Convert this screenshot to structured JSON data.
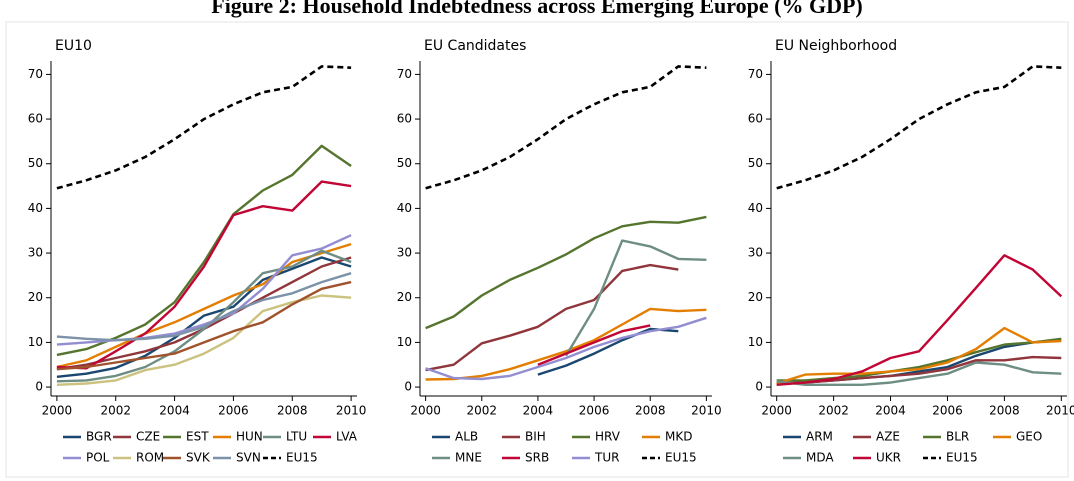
{
  "title": "Figure 2: Household Indebtedness across Emerging Europe (% GDP)",
  "chart_data": [
    {
      "type": "line",
      "title": "EU10",
      "x": [
        2000,
        2001,
        2002,
        2003,
        2004,
        2005,
        2006,
        2007,
        2008,
        2009,
        2010
      ],
      "xlim": [
        1999.8,
        2010.2
      ],
      "xticks": [
        2000,
        2002,
        2004,
        2006,
        2008,
        2010
      ],
      "ylim": [
        -2,
        73
      ],
      "yticks": [
        0,
        10,
        20,
        30,
        40,
        50,
        60,
        70
      ],
      "series": [
        {
          "name": "BGR",
          "color": "#1a476f",
          "values": [
            2.3,
            3,
            4.3,
            7,
            11,
            16,
            18,
            24,
            26.5,
            29,
            27
          ]
        },
        {
          "name": "CZE",
          "color": "#90353b",
          "values": [
            4,
            5,
            6.5,
            8,
            10,
            13,
            16.5,
            20,
            23.5,
            27,
            29
          ]
        },
        {
          "name": "EST",
          "color": "#55752f",
          "values": [
            7.2,
            8.5,
            11,
            14,
            19,
            28,
            38.7,
            44,
            47.5,
            54,
            49.5
          ]
        },
        {
          "name": "HUN",
          "color": "#e37e00",
          "values": [
            4.5,
            6,
            9,
            12,
            14.5,
            17.5,
            20.5,
            23,
            28,
            30,
            32
          ]
        },
        {
          "name": "LTU",
          "color": "#6e8e84",
          "values": [
            1.3,
            1.5,
            2.5,
            4.5,
            8,
            13,
            19,
            25.5,
            27,
            30.5,
            28
          ]
        },
        {
          "name": "LVA",
          "color": "#c10534",
          "values": [
            4.5,
            4.2,
            8,
            12,
            18,
            27,
            38.5,
            40.5,
            39.5,
            46,
            45
          ]
        },
        {
          "name": "POL",
          "color": "#938dd2",
          "values": [
            9.5,
            10,
            10.5,
            11,
            12,
            14,
            16.5,
            22,
            29.5,
            31,
            34
          ]
        },
        {
          "name": "ROM",
          "color": "#cac27e",
          "values": [
            0.5,
            0.8,
            1.5,
            3.8,
            5,
            7.5,
            11,
            17,
            19,
            20.5,
            20
          ]
        },
        {
          "name": "SVK",
          "color": "#a0522d",
          "values": [
            4,
            4.5,
            5.5,
            6.5,
            7.5,
            10,
            12.5,
            14.5,
            18.5,
            22,
            23.5
          ]
        },
        {
          "name": "SVN",
          "color": "#7b92a8",
          "values": [
            11.3,
            10.8,
            10.5,
            10.8,
            11.5,
            13.5,
            17,
            19.5,
            21,
            23.5,
            25.5
          ]
        },
        {
          "name": "EU15",
          "color": "#000000",
          "dashed": true,
          "values": [
            44.5,
            46.3,
            48.5,
            51.5,
            55.5,
            60,
            63.3,
            66,
            67.2,
            71.8,
            71.5
          ]
        }
      ]
    },
    {
      "type": "line",
      "title": "EU Candidates",
      "x": [
        2000,
        2001,
        2002,
        2003,
        2004,
        2005,
        2006,
        2007,
        2008,
        2009,
        2010
      ],
      "xlim": [
        1999.8,
        2010.2
      ],
      "xticks": [
        2000,
        2002,
        2004,
        2006,
        2008,
        2010
      ],
      "ylim": [
        -2,
        73
      ],
      "yticks": [
        0,
        10,
        20,
        30,
        40,
        50,
        60,
        70
      ],
      "series": [
        {
          "name": "ALB",
          "color": "#1a476f",
          "values": [
            null,
            null,
            null,
            null,
            2.8,
            4.8,
            7.5,
            10.5,
            13,
            12.5,
            null
          ]
        },
        {
          "name": "BIH",
          "color": "#90353b",
          "values": [
            3.8,
            5,
            9.8,
            11.5,
            13.5,
            17.5,
            19.5,
            26,
            27.3,
            26.3,
            null
          ]
        },
        {
          "name": "HRV",
          "color": "#55752f",
          "values": [
            13.2,
            15.8,
            20.5,
            24,
            26.7,
            29.7,
            33.3,
            36,
            37,
            36.8,
            38.1
          ]
        },
        {
          "name": "MKD",
          "color": "#e37e00",
          "values": [
            1.7,
            1.8,
            2.5,
            4,
            6,
            8,
            10.5,
            14,
            17.5,
            17,
            17.3
          ]
        },
        {
          "name": "MNE",
          "color": "#6e8e84",
          "values": [
            null,
            null,
            null,
            null,
            null,
            7,
            17.5,
            32.8,
            31.5,
            28.7,
            28.5
          ]
        },
        {
          "name": "SRB",
          "color": "#c10534",
          "values": [
            null,
            null,
            null,
            null,
            5,
            7.5,
            10,
            12.5,
            13.8,
            null,
            null
          ]
        },
        {
          "name": "TUR",
          "color": "#938dd2",
          "values": [
            4.2,
            2,
            1.8,
            2.5,
            4.5,
            6.5,
            9,
            11,
            12.5,
            13.5,
            15.5
          ]
        },
        {
          "name": "EU15",
          "color": "#000000",
          "dashed": true,
          "values": [
            44.5,
            46.3,
            48.5,
            51.5,
            55.5,
            60,
            63.3,
            66,
            67.2,
            71.8,
            71.5
          ]
        }
      ]
    },
    {
      "type": "line",
      "title": "EU Neighborhood",
      "x": [
        2000,
        2001,
        2002,
        2003,
        2004,
        2005,
        2006,
        2007,
        2008,
        2009,
        2010
      ],
      "xlim": [
        1999.8,
        2010.2
      ],
      "xticks": [
        2000,
        2002,
        2004,
        2006,
        2008,
        2010
      ],
      "ylim": [
        -2,
        73
      ],
      "yticks": [
        0,
        10,
        20,
        30,
        40,
        50,
        60,
        70
      ],
      "series": [
        {
          "name": "ARM",
          "color": "#1a476f",
          "values": [
            0.8,
            1,
            1.5,
            2,
            2.5,
            3.5,
            4.5,
            7,
            9,
            10,
            10.5
          ]
        },
        {
          "name": "AZE",
          "color": "#90353b",
          "values": [
            0.8,
            1,
            1.5,
            2,
            2.5,
            3,
            4,
            6,
            6,
            6.7,
            6.5
          ]
        },
        {
          "name": "BLR",
          "color": "#55752f",
          "values": [
            1.5,
            1.5,
            2,
            2.5,
            3.5,
            4.5,
            6,
            7.8,
            9.5,
            10,
            10.8
          ]
        },
        {
          "name": "GEO",
          "color": "#e37e00",
          "values": [
            0.8,
            2.8,
            3,
            3,
            3.5,
            4,
            5.5,
            8.5,
            13.2,
            10,
            10.3
          ]
        },
        {
          "name": "MDA",
          "color": "#6e8e84",
          "values": [
            1.3,
            0.5,
            0.5,
            0.5,
            1,
            2,
            3,
            5.5,
            5,
            3.3,
            3
          ]
        },
        {
          "name": "UKR",
          "color": "#c10534",
          "values": [
            0.5,
            1,
            1.8,
            3.5,
            6.5,
            8,
            15,
            22.2,
            29.5,
            26.3,
            20.3
          ]
        },
        {
          "name": "EU15",
          "color": "#000000",
          "dashed": true,
          "values": [
            44.5,
            46.3,
            48.5,
            51.5,
            55.5,
            60,
            63.3,
            66,
            67.2,
            71.8,
            71.5
          ]
        }
      ]
    }
  ]
}
